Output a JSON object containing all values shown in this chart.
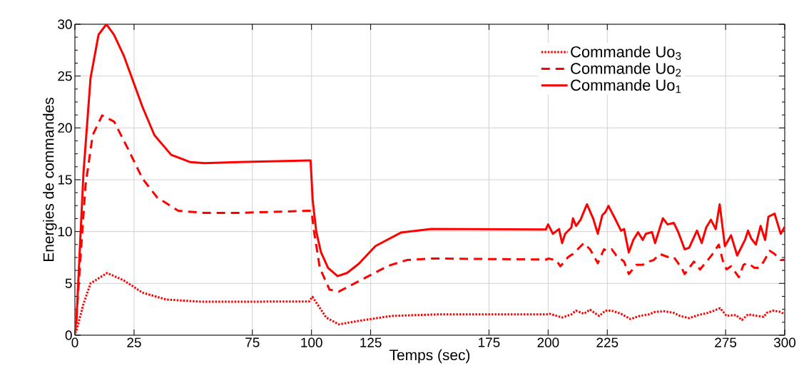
{
  "chart_data": {
    "type": "line",
    "xlabel": "Temps (sec)",
    "ylabel": "Energies de commandes",
    "xlim": [
      0,
      300
    ],
    "ylim": [
      0,
      30
    ],
    "xticks": [
      0,
      25,
      75,
      100,
      125,
      175,
      200,
      225,
      275,
      300
    ],
    "yticks": [
      0,
      5,
      10,
      15,
      20,
      25,
      30
    ],
    "grid": true,
    "legend": "top right",
    "series": [
      {
        "name": "Commande Uo$_{3}$",
        "color": "#ff0000",
        "line_style": "dotted",
        "x": [
          0,
          0.6,
          3.6,
          6.6,
          13.6,
          20.6,
          28.6,
          38.6,
          53.7,
          98.9,
          100.4,
          101,
          106.2,
          111.5,
          120.7,
          133.8,
          153.4,
          199.3,
          200.6,
          205.9,
          209.8,
          211.8,
          215.1,
          217.7,
          221.6,
          224.2,
          226.9,
          230.8,
          234.7,
          238.7,
          242.6,
          245.2,
          249.1,
          253.1,
          255.7,
          259.6,
          263.6,
          267.5,
          270.1,
          272.7,
          275.4,
          279.3,
          281.9,
          284.5,
          288.5,
          291.1,
          292.4,
          295,
          298.3,
          300
        ],
        "values": [
          0.2,
          0.4,
          3.0,
          5.0,
          6.0,
          5.3,
          4.1,
          3.44,
          3.23,
          3.25,
          3.7,
          3.5,
          1.71,
          1.05,
          1.41,
          1.86,
          2.01,
          2.01,
          2.07,
          1.71,
          2.01,
          2.37,
          2.07,
          2.46,
          1.86,
          2.37,
          2.37,
          2.07,
          1.56,
          1.86,
          2.01,
          2.25,
          2.31,
          2.16,
          1.86,
          1.65,
          1.95,
          2.16,
          2.37,
          2.61,
          1.86,
          1.95,
          1.47,
          2.01,
          1.86,
          1.77,
          2.16,
          2.37,
          2.25,
          2.01
        ]
      },
      {
        "name": "Commande Uo$_{2}$",
        "color": "#ff0000",
        "line_style": "dashed",
        "x": [
          0,
          0.6,
          2.4,
          4.5,
          7.5,
          11.5,
          16.6,
          22.6,
          28.6,
          34.7,
          43.7,
          54.8,
          68.8,
          98.9,
          100,
          101,
          103.5,
          107.6,
          111.5,
          120.7,
          132.5,
          140.3,
          150.8,
          199.3,
          200,
          203.3,
          205.2,
          208.5,
          210.5,
          215.1,
          216.4,
          217.7,
          221,
          223.6,
          224.9,
          226.9,
          228.8,
          232.1,
          234.1,
          237.3,
          240,
          242.6,
          244.6,
          247.2,
          250.5,
          253.1,
          256.4,
          257.7,
          261.6,
          264.2,
          267.5,
          269.5,
          272.1,
          274.1,
          275.4,
          277.3,
          280.6,
          282.6,
          284.5,
          287.2,
          289.1,
          291.1,
          293.7,
          295.7,
          298.3,
          300
        ],
        "values": [
          0.2,
          1.5,
          7.6,
          14.5,
          19.3,
          21.2,
          20.6,
          17.9,
          15.1,
          13.3,
          12.0,
          11.8,
          11.8,
          12.0,
          12.0,
          10.1,
          6.5,
          4.4,
          4.2,
          5.3,
          6.7,
          7.25,
          7.4,
          7.3,
          7.4,
          7.25,
          6.65,
          7.55,
          7.84,
          8.89,
          8.59,
          8.29,
          6.95,
          8.29,
          8.14,
          8.29,
          7.69,
          7.1,
          5.9,
          6.8,
          6.8,
          7.1,
          7.25,
          7.84,
          7.55,
          7.55,
          6.5,
          5.9,
          7.1,
          6.35,
          7.25,
          7.84,
          8.74,
          6.95,
          6.35,
          6.65,
          5.6,
          6.8,
          6.95,
          6.5,
          6.5,
          7.1,
          8.14,
          7.84,
          7.25,
          7.25
        ]
      },
      {
        "name": "Commande Uo$_{1}$",
        "color": "#ff0000",
        "line_style": "solid",
        "x": [
          0,
          0.6,
          3.6,
          6.6,
          10,
          13.3,
          16.5,
          20.6,
          28.6,
          33.6,
          40.7,
          48.8,
          54.8,
          68.8,
          98.9,
          99.6,
          100.5,
          102,
          104,
          107,
          111,
          115,
          120,
          127,
          137.8,
          150.7,
          199,
          200,
          202,
          204.6,
          205.9,
          207.2,
          209.8,
          210.5,
          211.8,
          213.7,
          216.4,
          219,
          221,
          222.9,
          224.2,
          225.5,
          228.2,
          230.8,
          232.1,
          234.1,
          236,
          238,
          240,
          241.3,
          243.9,
          245.2,
          248.5,
          250.5,
          253.1,
          255,
          257.7,
          259.6,
          262.9,
          264.9,
          266.8,
          268.8,
          270.8,
          272.5,
          274.7,
          277.3,
          279.9,
          283.2,
          284.5,
          285.8,
          287.8,
          289.8,
          291.7,
          293.1,
          295.7,
          298.3,
          300
        ],
        "values": [
          1.0,
          1.2,
          15.6,
          24.8,
          29.0,
          30.0,
          29.0,
          27.0,
          22.0,
          19.3,
          17.4,
          16.7,
          16.6,
          16.7,
          16.85,
          16.85,
          13.0,
          10.0,
          8.0,
          6.5,
          5.7,
          6.0,
          6.9,
          8.6,
          9.9,
          10.25,
          10.2,
          10.69,
          9.79,
          10.24,
          8.89,
          9.79,
          10.39,
          11.28,
          10.54,
          11.14,
          12.63,
          11.28,
          9.79,
          11.58,
          11.88,
          12.48,
          11.28,
          10.09,
          10.24,
          7.99,
          9.19,
          9.94,
          9.19,
          9.79,
          9.94,
          8.89,
          11.28,
          10.69,
          10.84,
          9.94,
          8.29,
          8.44,
          10.09,
          8.89,
          10.39,
          11.14,
          10.24,
          12.63,
          8.59,
          9.64,
          7.69,
          9.19,
          10.09,
          9.34,
          8.74,
          10.54,
          9.19,
          11.43,
          11.73,
          9.79,
          10.45
        ]
      }
    ]
  }
}
